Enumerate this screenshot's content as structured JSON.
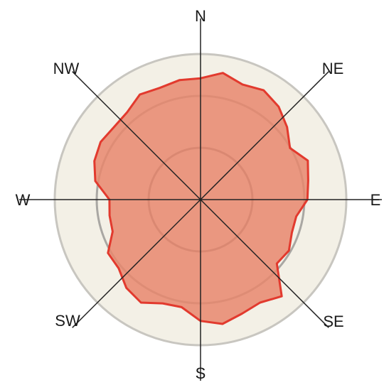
{
  "chart_data": {
    "type": "radar",
    "directions": [
      "N",
      "NE",
      "E",
      "SE",
      "S",
      "SW",
      "W",
      "NW"
    ],
    "series": [
      {
        "values": [
          1.0,
          1.06,
          1.01,
          1.04,
          1.0,
          0.93,
          0.85,
          0.94,
          0.9,
          0.88,
          0.8,
          0.8,
          0.84,
          0.82,
          1.04,
          0.98,
          1.0,
          1.04,
          1.0,
          0.9,
          0.91,
          0.98,
          0.95,
          0.88,
          0.88,
          0.77,
          0.76,
          0.75,
          0.88,
          0.93,
          0.95,
          0.93,
          0.94,
          1.0,
          0.98,
          1.0
        ],
        "color": "#e23a2e",
        "fill": "#e8876d"
      }
    ],
    "rlim": [
      0,
      1.2
    ],
    "rings": [
      0.4,
      0.8,
      1.2
    ],
    "grid": true
  }
}
